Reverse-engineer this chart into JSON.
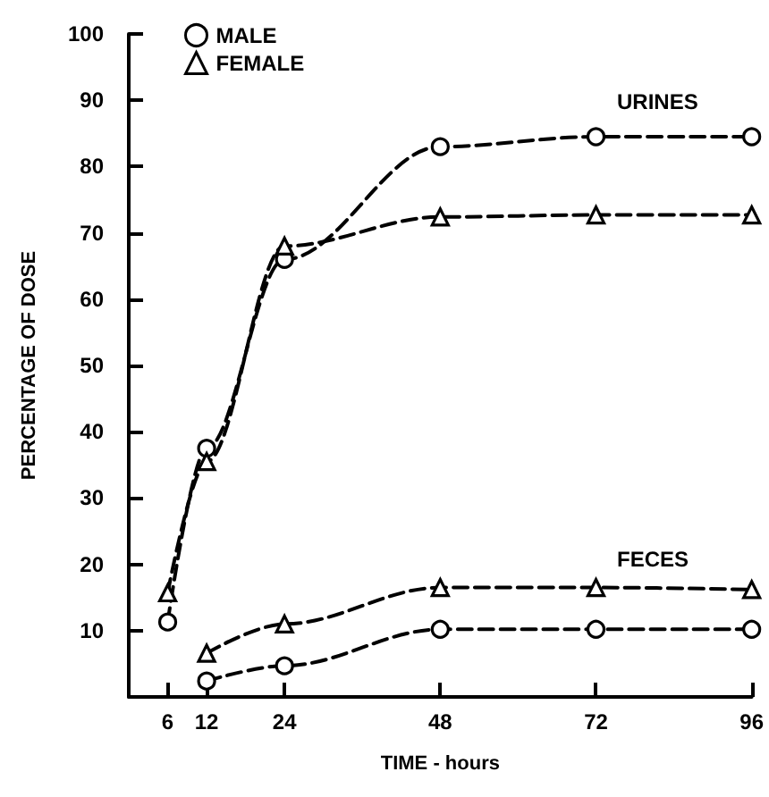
{
  "chart_data": {
    "type": "line",
    "xlabel": "TIME - hours",
    "ylabel": "PERCENTAGE OF DOSE",
    "x": [
      6,
      12,
      24,
      48,
      72,
      96
    ],
    "series": [
      {
        "name": "MALE",
        "color": "#000000",
        "marker": "circle",
        "values": [
          11.3,
          37.5,
          66,
          83,
          84.5,
          84.5
        ]
      },
      {
        "name": "FEMALE",
        "color": "#000000",
        "marker": "triangle",
        "values": [
          15.7,
          35.5,
          68,
          72.4,
          72.7,
          72.7
        ]
      },
      {
        "color": "#000000",
        "marker": "circle",
        "x": [
          12,
          24,
          48,
          72,
          96
        ],
        "values": [
          2.4,
          4.7,
          10.2,
          10.2,
          10.2
        ]
      },
      {
        "color": "#000000",
        "marker": "triangle",
        "x": [
          12,
          24,
          48,
          72,
          96
        ],
        "values": [
          6.6,
          11,
          16.5,
          16.5,
          16.2
        ]
      }
    ],
    "annotations": [
      "URINES",
      "FECES"
    ],
    "xlim": [
      0,
      96
    ],
    "xticks": [
      6,
      12,
      24,
      48,
      72,
      96
    ],
    "ylim": [
      0,
      100
    ],
    "yticks": [
      10,
      20,
      30,
      40,
      50,
      60,
      70,
      80,
      90,
      100
    ],
    "line_style": "dashed",
    "grid": false,
    "legend": "top left"
  }
}
